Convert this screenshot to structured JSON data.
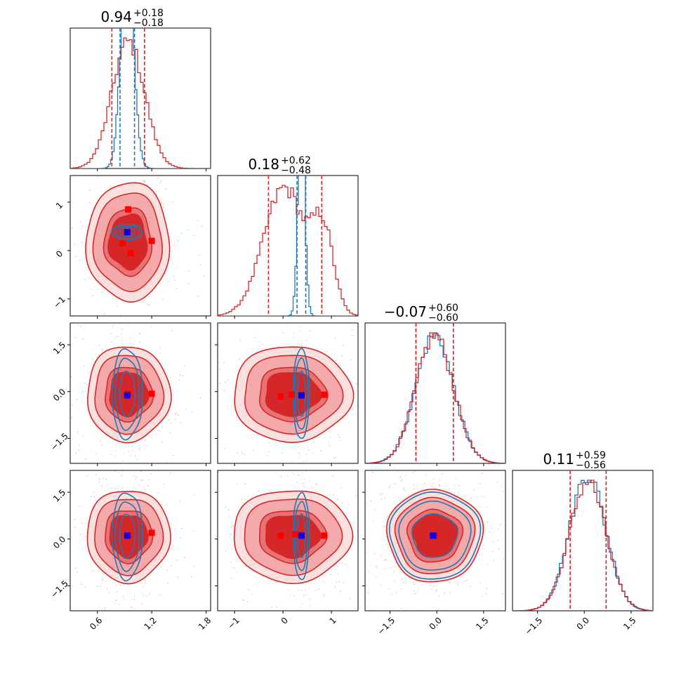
{
  "colors": {
    "red": "#d62728",
    "red_light": "#f4aaaa",
    "red_mid": "#e77474",
    "blue": "#1f77b4",
    "marker_red": "#ff0000",
    "marker_blue": "#0000ff"
  },
  "chart_data": {
    "type": "corner",
    "grid": false,
    "parameters": 4,
    "diagonal": [
      {
        "title_value": "0.94",
        "title_plus": "+0.18",
        "title_minus": "−0.18",
        "range": [
          0.3,
          1.85
        ],
        "red_series": {
          "mean": 0.94,
          "sigma": 0.18,
          "quantiles": [
            0.76,
            1.12
          ]
        },
        "blue_series": {
          "mean": 0.93,
          "sigma": 0.07,
          "quantiles": [
            0.85,
            1.01
          ]
        }
      },
      {
        "title_value": "0.18",
        "title_plus": "+0.62",
        "title_minus": "−0.48",
        "range": [
          -1.35,
          1.55
        ],
        "red_series": {
          "mean": 0.18,
          "sigma": 0.48,
          "quantiles": [
            -0.3,
            0.8
          ]
        },
        "blue_series": {
          "mean": 0.38,
          "sigma": 0.07,
          "quantiles": [
            0.29,
            0.47
          ]
        }
      },
      {
        "title_value": "−0.07",
        "title_plus": "+0.60",
        "title_minus": "−0.60",
        "range": [
          -2.3,
          2.2
        ],
        "red_series": {
          "mean": -0.07,
          "sigma": 0.6,
          "quantiles": [
            -0.67,
            0.53
          ]
        },
        "blue_series": {
          "mean": -0.07,
          "sigma": 0.6,
          "quantiles": [
            -0.67,
            0.53
          ]
        }
      },
      {
        "title_value": "0.11",
        "title_plus": "+0.59",
        "title_minus": "−0.56",
        "range": [
          -2.3,
          2.2
        ],
        "red_series": {
          "mean": 0.11,
          "sigma": 0.58,
          "quantiles": [
            -0.45,
            0.7
          ]
        },
        "blue_series": {
          "mean": 0.11,
          "sigma": 0.58,
          "quantiles": [
            -0.45,
            0.7
          ]
        }
      }
    ],
    "axis_ticks": [
      [
        "0.6",
        "1.2",
        "1.8"
      ],
      [
        "−1",
        "0",
        "1"
      ],
      [
        "−1.5",
        "0.0",
        "1.5"
      ],
      [
        "−1.5",
        "0.0",
        "1.5"
      ]
    ],
    "axis_tick_values": [
      [
        0.6,
        1.2,
        1.8
      ],
      [
        -1,
        0,
        1
      ],
      [
        -1.5,
        0.0,
        1.5
      ],
      [
        -1.5,
        0.0,
        1.5
      ]
    ],
    "row_y_ticks": [
      null,
      [
        "1",
        "0",
        "−1"
      ],
      [
        "1.5",
        "0.0",
        "−1.5"
      ],
      [
        "1.5",
        "0.0",
        "−1.5"
      ]
    ],
    "row_y_tick_values": [
      null,
      [
        1,
        0,
        -1
      ],
      [
        1.5,
        0.0,
        -1.5
      ],
      [
        1.5,
        0.0,
        -1.5
      ]
    ],
    "red_markers": {
      "p1_p2": [
        [
          0.94,
          0.85
        ],
        [
          0.88,
          0.15
        ],
        [
          0.97,
          -0.05
        ],
        [
          1.2,
          0.2
        ]
      ],
      "p1_p3": [
        [
          0.94,
          -0.07
        ],
        [
          1.2,
          -0.07
        ]
      ],
      "p2_p3": [
        [
          -0.05,
          -0.15
        ],
        [
          0.18,
          -0.1
        ],
        [
          0.85,
          -0.1
        ]
      ],
      "p1_p4": [
        [
          0.94,
          0.11
        ],
        [
          1.2,
          0.2
        ]
      ],
      "p2_p4": [
        [
          -0.05,
          0.11
        ],
        [
          0.25,
          0.15
        ],
        [
          0.85,
          0.11
        ]
      ],
      "p3_p4": [
        [
          -0.07,
          0.11
        ]
      ]
    },
    "blue_marker": [
      0.93,
      0.38,
      -0.12,
      0.11
    ]
  }
}
